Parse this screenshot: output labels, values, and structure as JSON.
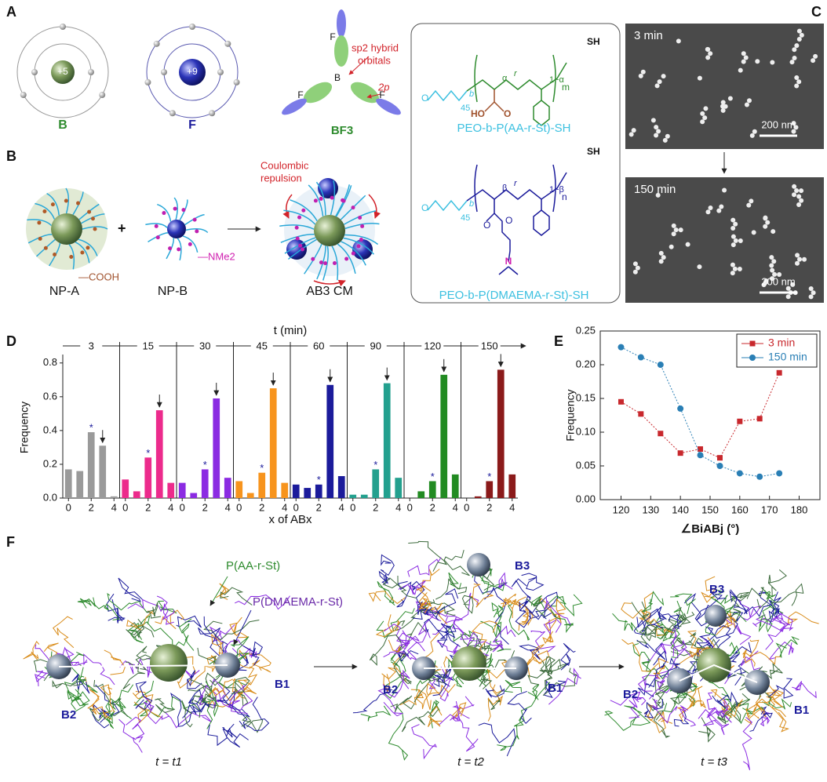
{
  "panel_a": {
    "label": "A",
    "b_charge": "+5",
    "f_charge": "+9",
    "b_name": "B",
    "f_name": "F",
    "bf3_name": "BF3",
    "bf3_b": "B",
    "bf3_f": [
      "F",
      "F",
      "F"
    ],
    "sp2_note": [
      "sp2 hybrid",
      "orbitals"
    ],
    "p_note": "2p"
  },
  "panel_b": {
    "label": "B",
    "plus": "+",
    "cooh": "—COOH",
    "nme2": "—NMe2",
    "np_a": "NP-A",
    "np_b": "NP-B",
    "cm": "AB3 CM",
    "repulsion": [
      "Coulombic",
      "repulsion"
    ]
  },
  "polymers": {
    "p1": {
      "name": "PEO-b-P(AA-r-St)-SH",
      "sh": "SH",
      "peo": "45",
      "b": "b",
      "r": "r",
      "acid": "HO",
      "carbonyl": "O",
      "ether": "O",
      "frac": "α",
      "rest": "1−α",
      "n": "m"
    },
    "p2": {
      "name": "PEO-b-P(DMAEMA-r-St)-SH",
      "sh": "SH",
      "peo": "45",
      "b": "b",
      "r": "r",
      "amine": "N",
      "carbonyl": "O",
      "ester": "O",
      "ether": "O",
      "frac": "β",
      "rest": "1−β",
      "n": "n"
    }
  },
  "panel_c": {
    "label": "C",
    "top": "3 min",
    "bottom": "150 min",
    "scale": [
      "200 nm",
      "200 nm"
    ]
  },
  "panel_d": {
    "label": "D",
    "time_axis": "t (min)",
    "ylabel": "Frequency",
    "xlabel": "x of ABx"
  },
  "panel_e": {
    "label": "E"
  },
  "panel_f": {
    "label": "F",
    "chain1": "P(AA-r-St)",
    "chain2": "P(DMAEMA-r-St)",
    "states": [
      {
        "time": "t = t1",
        "b_labels": [
          "B1",
          "B2"
        ]
      },
      {
        "time": "t = t2",
        "b_labels": [
          "B1",
          "B2",
          "B3"
        ]
      },
      {
        "time": "t = t3",
        "b_labels": [
          "B1",
          "B2",
          "B3"
        ]
      }
    ]
  },
  "chart_data": [
    {
      "type": "bar",
      "title": "3",
      "categories": [
        "0",
        null,
        "2",
        null,
        "4"
      ],
      "values": [
        0.17,
        0.16,
        0.39,
        0.31,
        0.01
      ],
      "color": "#9a9a9a",
      "ylim": [
        0,
        0.85
      ],
      "yticks": [
        {
          "value": 0,
          "label": "0.0"
        },
        0.2,
        0.4,
        0.6,
        0.8
      ]
    },
    {
      "type": "bar",
      "title": "15",
      "categories": [
        "0",
        null,
        "2",
        null,
        "4"
      ],
      "values": [
        0.11,
        0.04,
        0.24,
        0.52,
        0.09
      ],
      "color": "#ec2b8c",
      "ylim": [
        0,
        0.85
      ]
    },
    {
      "type": "bar",
      "title": "30",
      "categories": [
        "0",
        null,
        "2",
        null,
        "4"
      ],
      "values": [
        0.09,
        0.03,
        0.17,
        0.59,
        0.12
      ],
      "color": "#8b2be2",
      "ylim": [
        0,
        0.85
      ]
    },
    {
      "type": "bar",
      "title": "45",
      "categories": [
        "0",
        null,
        "2",
        null,
        "4"
      ],
      "values": [
        0.1,
        0.03,
        0.15,
        0.65,
        0.09
      ],
      "color": "#f7941d",
      "ylim": [
        0,
        0.85
      ]
    },
    {
      "type": "bar",
      "title": "60",
      "categories": [
        "0",
        null,
        "2",
        null,
        "4"
      ],
      "values": [
        0.08,
        0.06,
        0.08,
        0.67,
        0.13
      ],
      "color": "#1b1b9b",
      "ylim": [
        0,
        0.85
      ]
    },
    {
      "type": "bar",
      "title": "90",
      "categories": [
        "0",
        null,
        "2",
        null,
        "4"
      ],
      "values": [
        0.02,
        0.02,
        0.17,
        0.68,
        0.12
      ],
      "color": "#23a08e",
      "ylim": [
        0,
        0.85
      ]
    },
    {
      "type": "bar",
      "title": "120",
      "categories": [
        "0",
        null,
        "2",
        null,
        "4"
      ],
      "values": [
        0.0,
        0.04,
        0.1,
        0.73,
        0.14
      ],
      "color": "#228b22",
      "ylim": [
        0,
        0.85
      ]
    },
    {
      "type": "bar",
      "title": "150",
      "categories": [
        "0",
        null,
        "2",
        null,
        "4"
      ],
      "values": [
        0.0,
        0.01,
        0.1,
        0.76,
        0.14
      ],
      "color": "#8b1a1a",
      "ylim": [
        0,
        0.85
      ]
    },
    {
      "type": "line",
      "xlabel": "∠BiABj (°)",
      "ylabel": "Frequency",
      "x": [
        120,
        126.7,
        133.3,
        140,
        146.7,
        153.3,
        160,
        166.7,
        173.3
      ],
      "series": [
        {
          "name": "3 min",
          "color": "#c8282d",
          "marker": "square",
          "values": [
            0.145,
            0.127,
            0.098,
            0.069,
            0.075,
            0.062,
            0.116,
            0.12,
            0.188
          ]
        },
        {
          "name": "150 min",
          "color": "#2a7fb5",
          "marker": "circle",
          "values": [
            0.226,
            0.211,
            0.2,
            0.135,
            0.066,
            0.05,
            0.039,
            0.034,
            0.039
          ]
        }
      ],
      "xlim": [
        113,
        187
      ],
      "xticks": [
        120,
        130,
        140,
        150,
        160,
        170,
        180
      ],
      "ylim": [
        0,
        0.25
      ],
      "yticks": [
        {
          "value": 0,
          "label": "0.00"
        },
        0.05,
        {
          "value": 0.1,
          "label": "0.10"
        },
        0.15,
        {
          "value": 0.2,
          "label": "0.20"
        },
        0.25
      ],
      "legend": "upper right"
    }
  ]
}
